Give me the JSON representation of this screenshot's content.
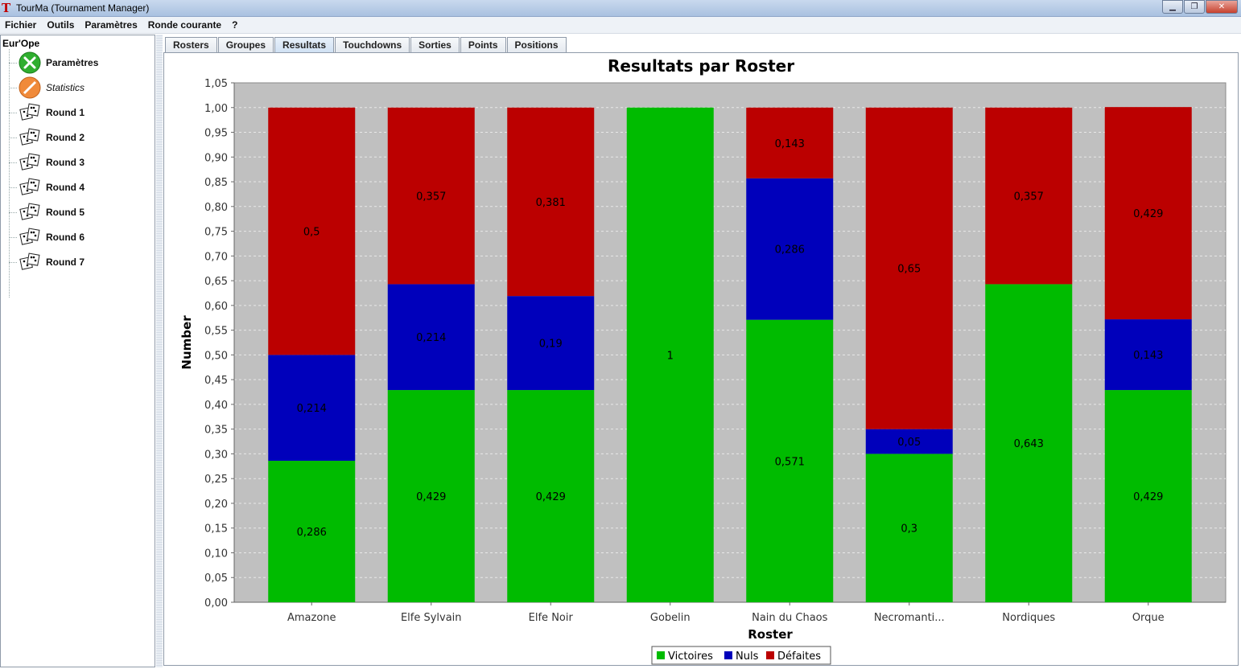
{
  "window": {
    "title": "TourMa (Tournament Manager)",
    "app_icon_glyph": "T",
    "buttons": [
      "minimize",
      "maximize",
      "close"
    ]
  },
  "menu": [
    "Fichier",
    "Outils",
    "Paramètres",
    "Ronde courante",
    "?"
  ],
  "tree": {
    "root": "Eur'Ope",
    "items": [
      {
        "label": "Paramètres",
        "icon": "tools-icon",
        "italic": false
      },
      {
        "label": "Statistics",
        "icon": "stats-icon",
        "italic": true
      },
      {
        "label": "Round 1",
        "icon": "dice-icon",
        "italic": false
      },
      {
        "label": "Round 2",
        "icon": "dice-icon",
        "italic": false
      },
      {
        "label": "Round 3",
        "icon": "dice-icon",
        "italic": false
      },
      {
        "label": "Round 4",
        "icon": "dice-icon",
        "italic": false
      },
      {
        "label": "Round 5",
        "icon": "dice-icon",
        "italic": false
      },
      {
        "label": "Round 6",
        "icon": "dice-icon",
        "italic": false
      },
      {
        "label": "Round 7",
        "icon": "dice-icon",
        "italic": false
      }
    ]
  },
  "tabs": [
    {
      "label": "Rosters",
      "active": false
    },
    {
      "label": "Groupes",
      "active": false
    },
    {
      "label": "Resultats",
      "active": true
    },
    {
      "label": "Touchdowns",
      "active": false
    },
    {
      "label": "Sorties",
      "active": false
    },
    {
      "label": "Points",
      "active": false
    },
    {
      "label": "Positions",
      "active": false
    }
  ],
  "chart_data": {
    "type": "bar",
    "stacked": true,
    "title": "Resultats par Roster",
    "xlabel": "Roster",
    "ylabel": "Number",
    "ylim": [
      0,
      1.05
    ],
    "ytick_step": 0.05,
    "decimal_separator": ",",
    "grid": true,
    "legend_position": "bottom",
    "categories": [
      "Amazone",
      "Elfe Sylvain",
      "Elfe Noir",
      "Gobelin",
      "Nain du Chaos",
      "Necromanti...",
      "Nordiques",
      "Orque"
    ],
    "series": [
      {
        "name": "Victoires",
        "color": "#00bb00",
        "values": [
          0.286,
          0.429,
          0.429,
          1,
          0.571,
          0.3,
          0.643,
          0.429
        ],
        "labels": [
          "0,286",
          "0,429",
          "0,429",
          "1",
          "0,571",
          "0,3",
          "0,643",
          "0,429"
        ]
      },
      {
        "name": "Nuls",
        "color": "#0000bb",
        "values": [
          0.214,
          0.214,
          0.19,
          0,
          0.286,
          0.05,
          0,
          0.143
        ],
        "labels": [
          "0,214",
          "0,214",
          "0,19",
          "",
          "0,286",
          "0,05",
          "",
          "0,143"
        ]
      },
      {
        "name": "Défaites",
        "color": "#bb0000",
        "values": [
          0.5,
          0.357,
          0.381,
          0,
          0.143,
          0.65,
          0.357,
          0.429
        ],
        "labels": [
          "0,5",
          "0,357",
          "0,381",
          "",
          "0,143",
          "0,65",
          "0,357",
          "0,429"
        ]
      }
    ],
    "plot_background": "#c0c0c0"
  }
}
